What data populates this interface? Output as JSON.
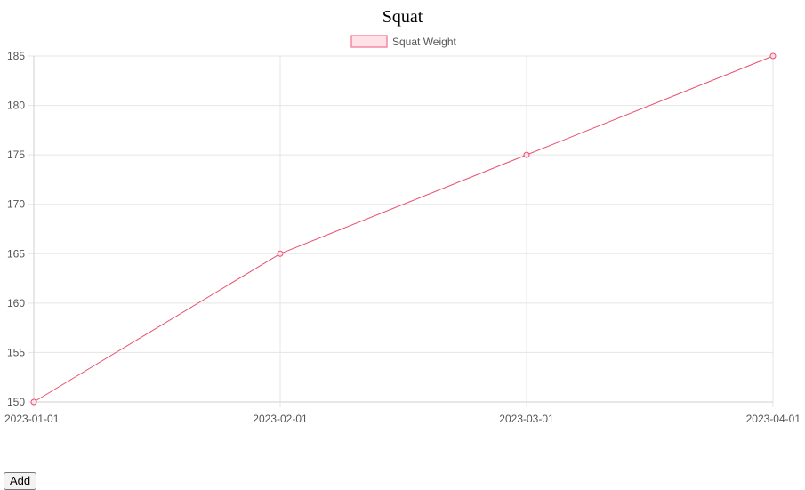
{
  "chart_title": "Squat",
  "add_button_label": "Add",
  "colors": {
    "line": "#e8506f",
    "legend_fill": "#ffe1e7",
    "legend_stroke": "#f28ba3",
    "grid": "#e5e5e5",
    "tick_text": "#555555"
  },
  "chart_data": {
    "type": "line",
    "title": "Squat",
    "x": [
      "2023-01-01",
      "2023-02-01",
      "2023-03-01",
      "2023-04-01"
    ],
    "series": [
      {
        "name": "Squat Weight",
        "values": [
          150,
          165,
          175,
          185
        ]
      }
    ],
    "ylim": [
      150,
      185
    ],
    "yticks": [
      150,
      155,
      160,
      165,
      170,
      175,
      180,
      185
    ],
    "grid": true,
    "legend": "top-center"
  }
}
